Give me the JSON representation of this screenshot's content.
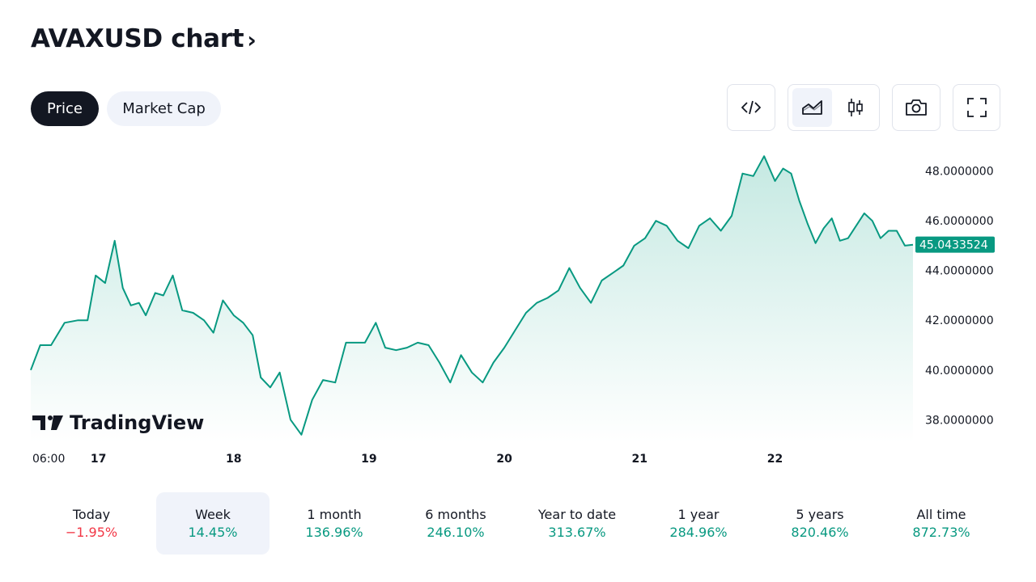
{
  "header": {
    "title": "AVAXUSD chart",
    "chevron": "›"
  },
  "tabs": [
    {
      "label": "Price",
      "active": true
    },
    {
      "label": "Market Cap",
      "active": false
    }
  ],
  "toolbar": {
    "embed_icon": "code-icon",
    "line_icon": "area-chart-icon",
    "candle_icon": "candlestick-icon",
    "snapshot_icon": "camera-icon",
    "fullscreen_icon": "fullscreen-icon"
  },
  "watermark": {
    "text": "TradingView",
    "icon": "tradingview-logo-icon"
  },
  "colors": {
    "line": "#089981",
    "area_top": "#c5e9e2",
    "area_bottom": "#ffffff",
    "badge_bg": "#089981",
    "positive": "#089981",
    "negative": "#f23645"
  },
  "chart_data": {
    "type": "area",
    "title": "AVAXUSD chart",
    "y_ticks": [
      "48.0000000",
      "46.0000000",
      "44.0000000",
      "42.0000000",
      "40.0000000",
      "38.0000000"
    ],
    "ylim": [
      37.1,
      48.8
    ],
    "x_tick_labels": [
      "06:00",
      "17",
      "18",
      "19",
      "20",
      "21",
      "22"
    ],
    "x_tick_positions": [
      0.0,
      0.5,
      1.5,
      2.5,
      3.5,
      4.5,
      5.5
    ],
    "xlim": [
      0,
      6.52
    ],
    "last_price": "45.0433524",
    "series": [
      {
        "name": "AVAXUSD",
        "x": [
          0.0,
          0.07,
          0.15,
          0.25,
          0.35,
          0.42,
          0.48,
          0.55,
          0.62,
          0.68,
          0.74,
          0.8,
          0.85,
          0.92,
          0.98,
          1.05,
          1.12,
          1.2,
          1.28,
          1.35,
          1.42,
          1.5,
          1.57,
          1.64,
          1.7,
          1.77,
          1.84,
          1.92,
          2.0,
          2.08,
          2.16,
          2.25,
          2.33,
          2.4,
          2.47,
          2.55,
          2.62,
          2.7,
          2.78,
          2.86,
          2.94,
          3.02,
          3.1,
          3.18,
          3.26,
          3.34,
          3.42,
          3.5,
          3.58,
          3.66,
          3.74,
          3.82,
          3.9,
          3.98,
          4.06,
          4.14,
          4.22,
          4.3,
          4.38,
          4.46,
          4.54,
          4.62,
          4.7,
          4.78,
          4.86,
          4.94,
          5.02,
          5.1,
          5.18,
          5.26,
          5.34,
          5.42,
          5.5,
          5.56,
          5.62,
          5.68,
          5.74,
          5.8,
          5.86,
          5.92,
          5.98,
          6.04,
          6.1,
          6.16,
          6.22,
          6.28,
          6.34,
          6.4,
          6.46,
          6.52
        ],
        "y": [
          40.0,
          41.0,
          41.0,
          41.9,
          42.0,
          42.0,
          43.8,
          43.5,
          45.2,
          43.3,
          42.6,
          42.7,
          42.2,
          43.1,
          43.0,
          43.8,
          42.4,
          42.3,
          42.0,
          41.5,
          42.8,
          42.2,
          41.9,
          41.4,
          39.7,
          39.3,
          39.9,
          38.0,
          37.4,
          38.8,
          39.6,
          39.5,
          41.1,
          41.1,
          41.1,
          41.9,
          40.9,
          40.8,
          40.9,
          41.1,
          41.0,
          40.3,
          39.5,
          40.6,
          39.9,
          39.5,
          40.3,
          40.9,
          41.6,
          42.3,
          42.7,
          42.9,
          43.2,
          44.1,
          43.3,
          42.7,
          43.6,
          43.9,
          44.2,
          45.0,
          45.3,
          46.0,
          45.8,
          45.2,
          44.9,
          45.8,
          46.1,
          45.6,
          46.2,
          47.9,
          47.8,
          48.6,
          47.6,
          48.1,
          47.9,
          46.8,
          45.9,
          45.1,
          45.7,
          46.1,
          45.2,
          45.3,
          45.8,
          46.3,
          46.0,
          45.3,
          45.6,
          45.6,
          45.0,
          45.04
        ]
      }
    ]
  },
  "periods": [
    {
      "label": "Today",
      "value": "−1.95%",
      "trend": "neg",
      "active": false
    },
    {
      "label": "Week",
      "value": "14.45%",
      "trend": "pos",
      "active": true
    },
    {
      "label": "1 month",
      "value": "136.96%",
      "trend": "pos",
      "active": false
    },
    {
      "label": "6 months",
      "value": "246.10%",
      "trend": "pos",
      "active": false
    },
    {
      "label": "Year to date",
      "value": "313.67%",
      "trend": "pos",
      "active": false
    },
    {
      "label": "1 year",
      "value": "284.96%",
      "trend": "pos",
      "active": false
    },
    {
      "label": "5 years",
      "value": "820.46%",
      "trend": "pos",
      "active": false
    },
    {
      "label": "All time",
      "value": "872.73%",
      "trend": "pos",
      "active": false
    }
  ]
}
